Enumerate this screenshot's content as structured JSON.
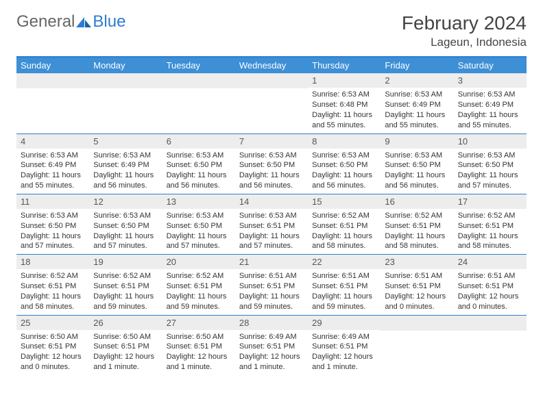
{
  "brand": {
    "part1": "General",
    "part2": "Blue"
  },
  "title": "February 2024",
  "location": "Lageun, Indonesia",
  "colors": {
    "header_bg": "#3d8fd6",
    "border": "#2e7cd1",
    "daynum_bg": "#ededed",
    "text": "#333333"
  },
  "weekdays": [
    "Sunday",
    "Monday",
    "Tuesday",
    "Wednesday",
    "Thursday",
    "Friday",
    "Saturday"
  ],
  "weeks": [
    [
      null,
      null,
      null,
      null,
      {
        "n": "1",
        "sr": "Sunrise: 6:53 AM",
        "ss": "Sunset: 6:48 PM",
        "dl": "Daylight: 11 hours and 55 minutes."
      },
      {
        "n": "2",
        "sr": "Sunrise: 6:53 AM",
        "ss": "Sunset: 6:49 PM",
        "dl": "Daylight: 11 hours and 55 minutes."
      },
      {
        "n": "3",
        "sr": "Sunrise: 6:53 AM",
        "ss": "Sunset: 6:49 PM",
        "dl": "Daylight: 11 hours and 55 minutes."
      }
    ],
    [
      {
        "n": "4",
        "sr": "Sunrise: 6:53 AM",
        "ss": "Sunset: 6:49 PM",
        "dl": "Daylight: 11 hours and 55 minutes."
      },
      {
        "n": "5",
        "sr": "Sunrise: 6:53 AM",
        "ss": "Sunset: 6:49 PM",
        "dl": "Daylight: 11 hours and 56 minutes."
      },
      {
        "n": "6",
        "sr": "Sunrise: 6:53 AM",
        "ss": "Sunset: 6:50 PM",
        "dl": "Daylight: 11 hours and 56 minutes."
      },
      {
        "n": "7",
        "sr": "Sunrise: 6:53 AM",
        "ss": "Sunset: 6:50 PM",
        "dl": "Daylight: 11 hours and 56 minutes."
      },
      {
        "n": "8",
        "sr": "Sunrise: 6:53 AM",
        "ss": "Sunset: 6:50 PM",
        "dl": "Daylight: 11 hours and 56 minutes."
      },
      {
        "n": "9",
        "sr": "Sunrise: 6:53 AM",
        "ss": "Sunset: 6:50 PM",
        "dl": "Daylight: 11 hours and 56 minutes."
      },
      {
        "n": "10",
        "sr": "Sunrise: 6:53 AM",
        "ss": "Sunset: 6:50 PM",
        "dl": "Daylight: 11 hours and 57 minutes."
      }
    ],
    [
      {
        "n": "11",
        "sr": "Sunrise: 6:53 AM",
        "ss": "Sunset: 6:50 PM",
        "dl": "Daylight: 11 hours and 57 minutes."
      },
      {
        "n": "12",
        "sr": "Sunrise: 6:53 AM",
        "ss": "Sunset: 6:50 PM",
        "dl": "Daylight: 11 hours and 57 minutes."
      },
      {
        "n": "13",
        "sr": "Sunrise: 6:53 AM",
        "ss": "Sunset: 6:50 PM",
        "dl": "Daylight: 11 hours and 57 minutes."
      },
      {
        "n": "14",
        "sr": "Sunrise: 6:53 AM",
        "ss": "Sunset: 6:51 PM",
        "dl": "Daylight: 11 hours and 57 minutes."
      },
      {
        "n": "15",
        "sr": "Sunrise: 6:52 AM",
        "ss": "Sunset: 6:51 PM",
        "dl": "Daylight: 11 hours and 58 minutes."
      },
      {
        "n": "16",
        "sr": "Sunrise: 6:52 AM",
        "ss": "Sunset: 6:51 PM",
        "dl": "Daylight: 11 hours and 58 minutes."
      },
      {
        "n": "17",
        "sr": "Sunrise: 6:52 AM",
        "ss": "Sunset: 6:51 PM",
        "dl": "Daylight: 11 hours and 58 minutes."
      }
    ],
    [
      {
        "n": "18",
        "sr": "Sunrise: 6:52 AM",
        "ss": "Sunset: 6:51 PM",
        "dl": "Daylight: 11 hours and 58 minutes."
      },
      {
        "n": "19",
        "sr": "Sunrise: 6:52 AM",
        "ss": "Sunset: 6:51 PM",
        "dl": "Daylight: 11 hours and 59 minutes."
      },
      {
        "n": "20",
        "sr": "Sunrise: 6:52 AM",
        "ss": "Sunset: 6:51 PM",
        "dl": "Daylight: 11 hours and 59 minutes."
      },
      {
        "n": "21",
        "sr": "Sunrise: 6:51 AM",
        "ss": "Sunset: 6:51 PM",
        "dl": "Daylight: 11 hours and 59 minutes."
      },
      {
        "n": "22",
        "sr": "Sunrise: 6:51 AM",
        "ss": "Sunset: 6:51 PM",
        "dl": "Daylight: 11 hours and 59 minutes."
      },
      {
        "n": "23",
        "sr": "Sunrise: 6:51 AM",
        "ss": "Sunset: 6:51 PM",
        "dl": "Daylight: 12 hours and 0 minutes."
      },
      {
        "n": "24",
        "sr": "Sunrise: 6:51 AM",
        "ss": "Sunset: 6:51 PM",
        "dl": "Daylight: 12 hours and 0 minutes."
      }
    ],
    [
      {
        "n": "25",
        "sr": "Sunrise: 6:50 AM",
        "ss": "Sunset: 6:51 PM",
        "dl": "Daylight: 12 hours and 0 minutes."
      },
      {
        "n": "26",
        "sr": "Sunrise: 6:50 AM",
        "ss": "Sunset: 6:51 PM",
        "dl": "Daylight: 12 hours and 1 minute."
      },
      {
        "n": "27",
        "sr": "Sunrise: 6:50 AM",
        "ss": "Sunset: 6:51 PM",
        "dl": "Daylight: 12 hours and 1 minute."
      },
      {
        "n": "28",
        "sr": "Sunrise: 6:49 AM",
        "ss": "Sunset: 6:51 PM",
        "dl": "Daylight: 12 hours and 1 minute."
      },
      {
        "n": "29",
        "sr": "Sunrise: 6:49 AM",
        "ss": "Sunset: 6:51 PM",
        "dl": "Daylight: 12 hours and 1 minute."
      },
      null,
      null
    ]
  ]
}
